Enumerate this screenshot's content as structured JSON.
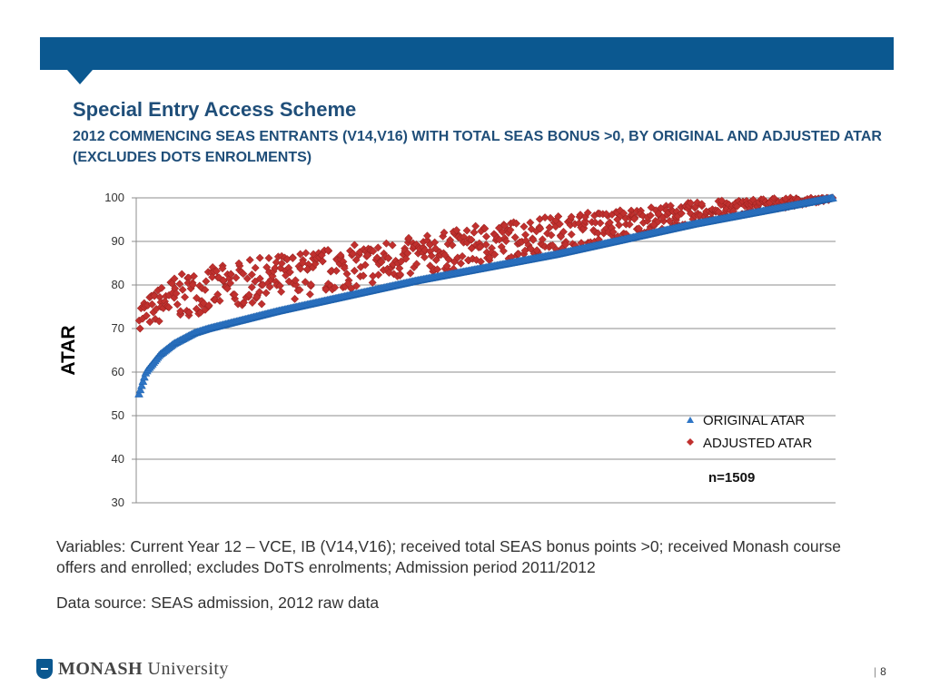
{
  "header": {
    "title": "Special Entry Access Scheme",
    "subtitle": "2012 COMMENCING SEAS ENTRANTS (V14,V16) WITH TOTAL SEAS BONUS >0, BY ORIGINAL AND ADJUSTED ATAR (EXCLUDES DOTS ENROLMENTS)"
  },
  "chart_data": {
    "type": "scatter",
    "ylabel": "ATAR",
    "ylim": [
      30,
      100
    ],
    "yticks": [
      "30",
      "40",
      "50",
      "60",
      "70",
      "80",
      "90",
      "100"
    ],
    "grid": true,
    "legend_position": "bottom-right",
    "annotation": "n=1509",
    "series_shape": "Original ATAR sorted ascending: rises steeply from about 55 to 70 over the first 10% of students, then climbs steadily to 100. Adjusted ATAR points lie above, mostly 5–14 points higher, converging at 100.",
    "series": [
      {
        "name": "ORIGINAL ATAR",
        "color": "#2e75c5",
        "marker": "triangle",
        "values_at_percentile": [
          {
            "percentile": 0,
            "value": 55
          },
          {
            "percentile": 1,
            "value": 60
          },
          {
            "percentile": 3,
            "value": 64
          },
          {
            "percentile": 5,
            "value": 66.5
          },
          {
            "percentile": 8,
            "value": 69
          },
          {
            "percentile": 10,
            "value": 70
          },
          {
            "percentile": 15,
            "value": 72
          },
          {
            "percentile": 20,
            "value": 74
          },
          {
            "percentile": 30,
            "value": 77.5
          },
          {
            "percentile": 40,
            "value": 81
          },
          {
            "percentile": 50,
            "value": 84
          },
          {
            "percentile": 60,
            "value": 87
          },
          {
            "percentile": 70,
            "value": 90.5
          },
          {
            "percentile": 80,
            "value": 94
          },
          {
            "percentile": 90,
            "value": 97
          },
          {
            "percentile": 100,
            "value": 100
          }
        ]
      },
      {
        "name": "ADJUSTED ATAR",
        "color": "#c0302e",
        "marker": "diamond",
        "values_at_percentile": [
          {
            "percentile": 0,
            "value": 71,
            "band": [
              70,
              76
            ]
          },
          {
            "percentile": 5,
            "value": 77,
            "band": [
              72,
              82
            ]
          },
          {
            "percentile": 10,
            "value": 80,
            "band": [
              74,
              84
            ]
          },
          {
            "percentile": 20,
            "value": 83,
            "band": [
              76,
              87
            ]
          },
          {
            "percentile": 30,
            "value": 85,
            "band": [
              79,
              89
            ]
          },
          {
            "percentile": 40,
            "value": 87.5,
            "band": [
              82,
              91
            ]
          },
          {
            "percentile": 50,
            "value": 90,
            "band": [
              85,
              94
            ]
          },
          {
            "percentile": 60,
            "value": 92,
            "band": [
              88,
              96
            ]
          },
          {
            "percentile": 70,
            "value": 94.5,
            "band": [
              91,
              97.5
            ]
          },
          {
            "percentile": 80,
            "value": 96.5,
            "band": [
              94,
              99
            ]
          },
          {
            "percentile": 90,
            "value": 98.5,
            "band": [
              97,
              100
            ]
          },
          {
            "percentile": 100,
            "value": 100,
            "band": [
              99.5,
              100
            ]
          }
        ]
      }
    ]
  },
  "notes": {
    "variables": "Variables:  Current Year 12 – VCE, IB (V14,V16); received total SEAS bonus points >0; received Monash course offers and enrolled; excludes DoTS enrolments; Admission period 2011/2012",
    "source": "Data source: SEAS admission, 2012 raw data"
  },
  "footer": {
    "logo_bold": "MONASH",
    "logo_rest": " University",
    "page_separator": "|",
    "page_number": "8"
  }
}
